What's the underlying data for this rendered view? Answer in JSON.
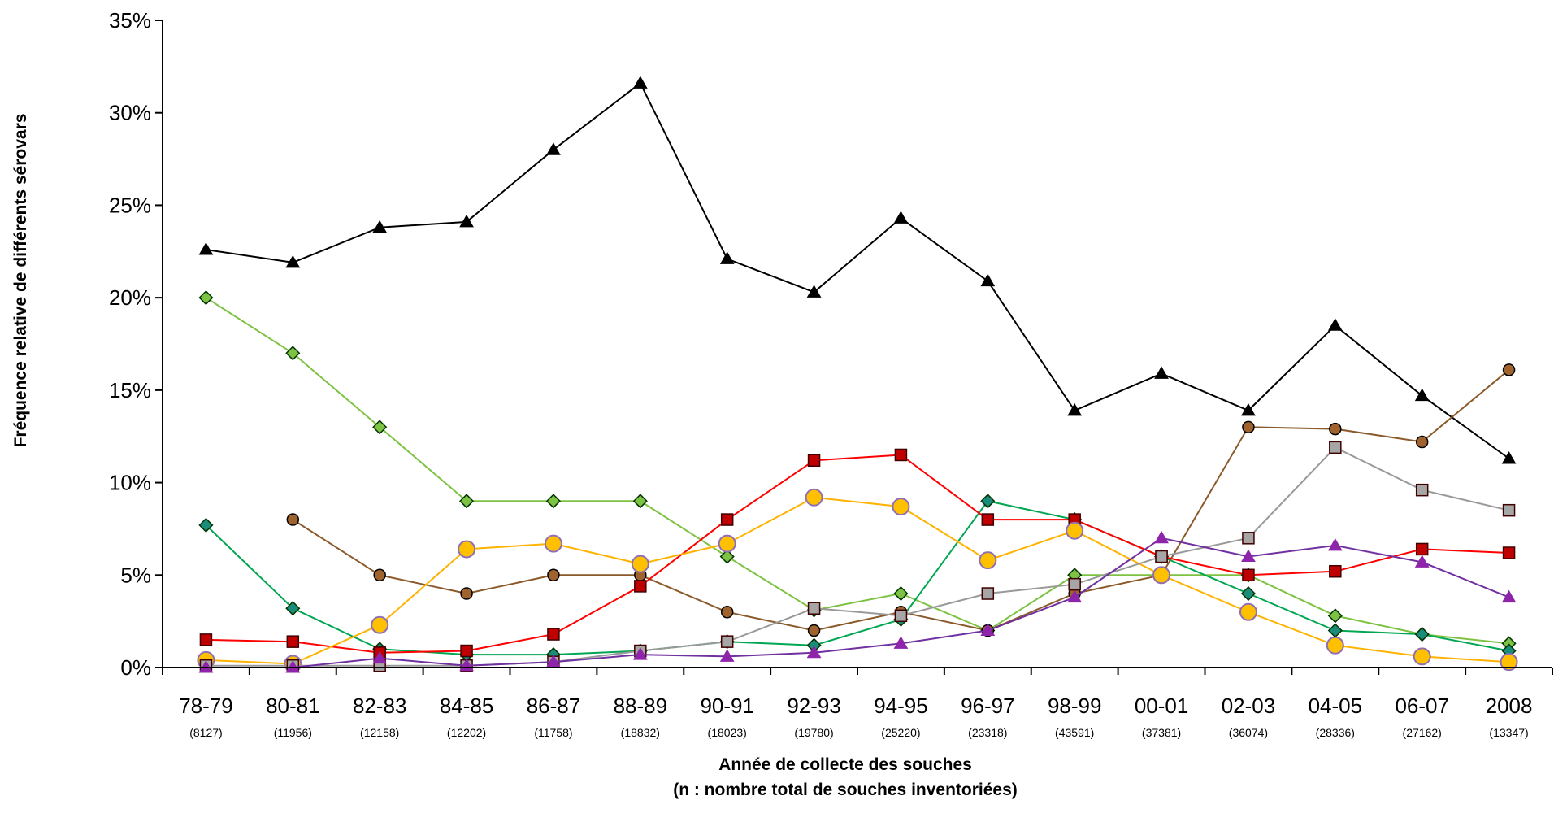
{
  "chart_data": {
    "type": "line",
    "xlabel": "Année de collecte des souches",
    "xlabel_line2": "(n : nombre total de souches inventoriées)",
    "ylabel": "Fréquence relative de différents sérovars",
    "ylim": [
      0,
      35
    ],
    "yticks": [
      "0%",
      "5%",
      "10%",
      "15%",
      "20%",
      "25%",
      "30%",
      "35%"
    ],
    "categories": [
      "78-79",
      "80-81",
      "82-83",
      "84-85",
      "86-87",
      "88-89",
      "90-91",
      "92-93",
      "94-95",
      "96-97",
      "98-99",
      "00-01",
      "02-03",
      "04-05",
      "06-07",
      "2008"
    ],
    "counts": [
      "(8127)",
      "(11956)",
      "(12158)",
      "(12202)",
      "(11758)",
      "(18832)",
      "(18023)",
      "(19780)",
      "(25220)",
      "(23318)",
      "(43591)",
      "(37381)",
      "(36074)",
      "(28336)",
      "(27162)",
      "(13347)"
    ],
    "grid": false,
    "legend": "none",
    "series": [
      {
        "color": "#000000",
        "marker": "triangle",
        "values": [
          22.6,
          21.9,
          23.8,
          24.1,
          28.0,
          31.6,
          22.1,
          20.3,
          24.3,
          20.9,
          13.9,
          15.9,
          13.9,
          18.5,
          14.7,
          11.3
        ]
      },
      {
        "color": "#7dc242",
        "stroke": "#7dc242",
        "marker": "diamond",
        "values": [
          20.0,
          17.0,
          13.0,
          9.0,
          9.0,
          9.0,
          6.0,
          3.1,
          4.0,
          2.0,
          5.0,
          5.0,
          5.0,
          2.8,
          1.8,
          1.3
        ]
      },
      {
        "color": "#00a651",
        "fill": "#1a8c7a",
        "marker": "diamond",
        "values": [
          7.7,
          3.2,
          1.0,
          0.7,
          0.7,
          0.9,
          1.4,
          1.2,
          2.6,
          9.0,
          8.0,
          6.0,
          4.0,
          2.0,
          1.8,
          0.9
        ]
      },
      {
        "color": "#8b5a2b",
        "fill": "#a0632d",
        "marker": "circle",
        "values": [
          null,
          8.0,
          5.0,
          4.0,
          5.0,
          5.0,
          3.0,
          2.0,
          3.0,
          2.0,
          4.0,
          5.0,
          13.0,
          12.9,
          12.2,
          16.1
        ]
      },
      {
        "color": "#ff0000",
        "fill": "#c00000",
        "marker": "square",
        "values": [
          1.5,
          1.4,
          0.8,
          0.9,
          1.8,
          4.4,
          8.0,
          11.2,
          11.5,
          8.0,
          8.0,
          6.0,
          5.0,
          5.2,
          6.4,
          6.2
        ]
      },
      {
        "color": "#ffb300",
        "fill": "#ffc000",
        "marker": "big-circle",
        "values": [
          0.4,
          0.2,
          2.3,
          6.4,
          6.7,
          5.6,
          6.7,
          9.2,
          8.7,
          5.8,
          7.4,
          5.0,
          3.0,
          1.2,
          0.6,
          0.3
        ]
      },
      {
        "color": "#999999",
        "fill": "#a6a6a6",
        "marker": "square",
        "values": [
          0.1,
          0.1,
          0.1,
          0.1,
          0.3,
          0.9,
          1.4,
          3.2,
          2.8,
          4.0,
          4.5,
          6.0,
          7.0,
          11.9,
          9.6,
          8.5
        ]
      },
      {
        "color": "#7030a0",
        "fill": "#8e24aa",
        "marker": "triangle",
        "values": [
          0.0,
          0.0,
          0.5,
          0.1,
          0.3,
          0.7,
          0.6,
          0.8,
          1.3,
          2.0,
          3.8,
          7.0,
          6.0,
          6.6,
          5.7,
          3.8
        ]
      }
    ]
  }
}
